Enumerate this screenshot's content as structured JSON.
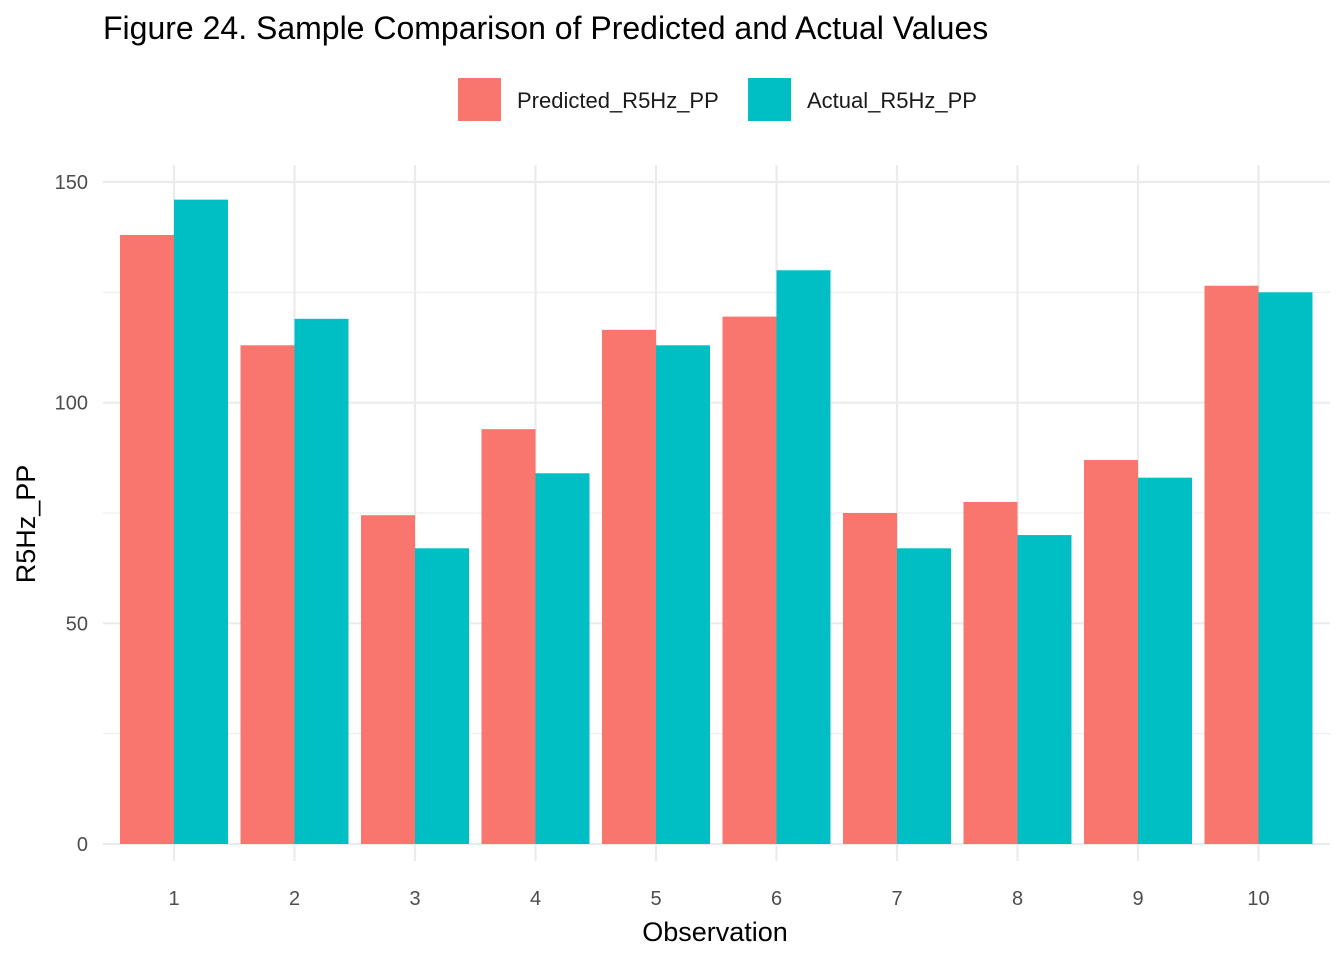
{
  "chart_data": {
    "type": "bar",
    "title": "Figure 24. Sample Comparison of Predicted and Actual Values",
    "xlabel": "Observation",
    "ylabel": "R5Hz_PP",
    "categories": [
      "1",
      "2",
      "3",
      "4",
      "5",
      "6",
      "7",
      "8",
      "9",
      "10"
    ],
    "series": [
      {
        "name": "Predicted_R5Hz_PP",
        "color": "#F8766D",
        "values": [
          138,
          113,
          74.5,
          94,
          116.5,
          119.5,
          75,
          77.5,
          87,
          126.5
        ]
      },
      {
        "name": "Actual_R5Hz_PP",
        "color": "#00BFC4",
        "values": [
          146,
          119,
          67,
          84,
          113,
          130,
          67,
          70,
          83,
          125
        ]
      }
    ],
    "ylim": [
      0,
      150
    ],
    "y_ticks": [
      "0",
      "50",
      "100",
      "150"
    ],
    "grid": true,
    "legend_position": "top"
  }
}
